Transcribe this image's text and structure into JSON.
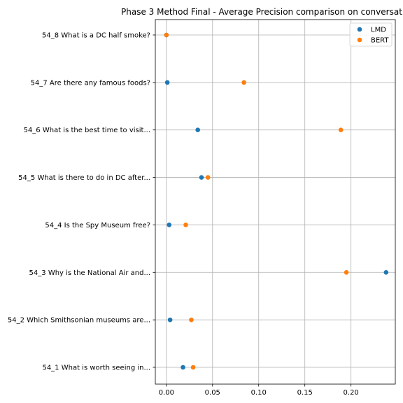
{
  "chart_data": {
    "type": "scatter",
    "title": "Phase 3 Method Final - Average Precision comparison on conversat",
    "xlabel": "",
    "ylabel": "",
    "xlim": [
      -0.012,
      0.248
    ],
    "xticks": [
      0.0,
      0.05,
      0.1,
      0.15,
      0.2
    ],
    "xtick_labels": [
      "0.00",
      "0.05",
      "0.10",
      "0.15",
      "0.20"
    ],
    "categories": [
      "54_8 What is a DC half smoke?",
      "54_7 Are there any famous foods?",
      "54_6 What is the best time to visit...",
      "54_5 What is there to do in DC after...",
      "54_4 Is the Spy Museum free?",
      "54_3 Why is the National Air and...",
      "54_2 Which Smithsonian museums are...",
      "54_1 What is worth seeing in..."
    ],
    "series": [
      {
        "name": "LMD",
        "color": "#1f77b4",
        "values": [
          0.0,
          0.001,
          0.034,
          0.038,
          0.003,
          0.238,
          0.004,
          0.018
        ]
      },
      {
        "name": "BERT",
        "color": "#ff7f0e",
        "values": [
          0.0,
          0.084,
          0.189,
          0.045,
          0.021,
          0.195,
          0.027,
          0.029
        ]
      }
    ],
    "grid": true,
    "legend": "top-right"
  }
}
